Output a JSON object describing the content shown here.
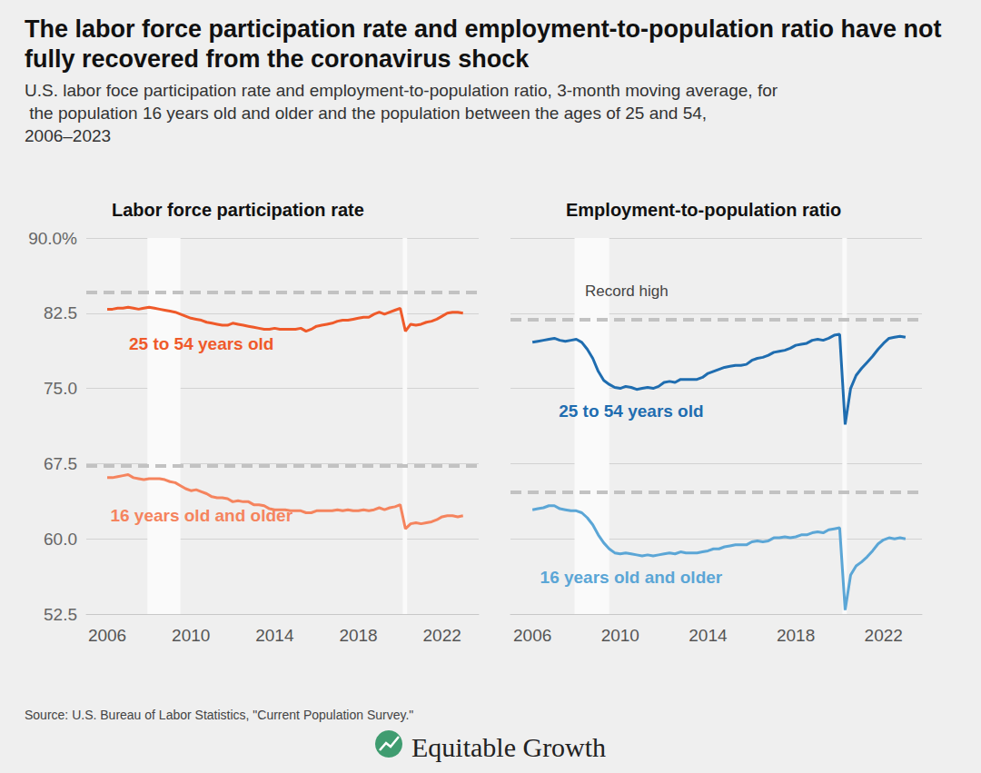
{
  "title": "The labor force participation rate and employment-to-population ratio have not fully recovered from the coronavirus shock",
  "subtitle": "U.S. labor foce participation rate and employment-to-population ratio, 3-month moving average, for the population 16 years old and older and the population between the ages of 25 and 54, 2006–2023",
  "source": "Source: U.S. Bureau of Labor Statistics, \"Current Population Survey.\"",
  "brand": "Equitable Growth",
  "chart_data": [
    {
      "type": "line",
      "title": "Labor force participation rate",
      "x": [
        2006,
        2006.25,
        2006.5,
        2006.75,
        2007,
        2007.25,
        2007.5,
        2007.75,
        2008,
        2008.25,
        2008.5,
        2008.75,
        2009,
        2009.25,
        2009.5,
        2009.75,
        2010,
        2010.25,
        2010.5,
        2010.75,
        2011,
        2011.25,
        2011.5,
        2011.75,
        2012,
        2012.25,
        2012.5,
        2012.75,
        2013,
        2013.25,
        2013.5,
        2013.75,
        2014,
        2014.25,
        2014.5,
        2014.75,
        2015,
        2015.25,
        2015.5,
        2015.75,
        2016,
        2016.25,
        2016.5,
        2016.75,
        2017,
        2017.25,
        2017.5,
        2017.75,
        2018,
        2018.25,
        2018.5,
        2018.75,
        2019,
        2019.25,
        2019.5,
        2019.75,
        2020,
        2020.25,
        2020.5,
        2020.75,
        2021,
        2021.25,
        2021.5,
        2021.75,
        2022,
        2022.25,
        2022.5,
        2022.75,
        2023
      ],
      "xlim": [
        2005,
        2023.75
      ],
      "xticks": [
        2006,
        2010,
        2014,
        2018,
        2022
      ],
      "ylim": [
        52.5,
        90
      ],
      "yticks": [
        52.5,
        {
          "value": 60,
          "label": "60.0"
        },
        67.5,
        {
          "value": 75,
          "label": "75.0"
        },
        82.5,
        {
          "value": 90,
          "label": "90.0%"
        }
      ],
      "grid": true,
      "recessions": [
        [
          2007.92,
          2009.5
        ],
        [
          2020.12,
          2020.33
        ]
      ],
      "reference_lines": [
        {
          "value": 84.6,
          "line_style": "dashed"
        },
        {
          "value": 67.3,
          "line_style": "dashed"
        }
      ],
      "series": [
        {
          "name": "25 to 54 years old",
          "color": "#ef5a2a",
          "values": [
            82.9,
            82.9,
            83.0,
            83.0,
            83.1,
            83.0,
            82.9,
            83.0,
            83.1,
            83.0,
            82.9,
            82.8,
            82.7,
            82.6,
            82.4,
            82.2,
            82.0,
            81.9,
            81.8,
            81.6,
            81.5,
            81.4,
            81.3,
            81.3,
            81.5,
            81.4,
            81.3,
            81.2,
            81.1,
            81.0,
            80.9,
            80.9,
            81.0,
            80.9,
            80.9,
            80.9,
            80.9,
            81.0,
            80.7,
            80.9,
            81.2,
            81.3,
            81.4,
            81.5,
            81.7,
            81.8,
            81.8,
            81.9,
            82.0,
            82.1,
            82.1,
            82.4,
            82.6,
            82.4,
            82.6,
            82.8,
            83.0,
            80.7,
            81.4,
            81.3,
            81.4,
            81.6,
            81.7,
            81.9,
            82.2,
            82.5,
            82.6,
            82.6,
            82.5
          ]
        },
        {
          "name": "16 years old and older",
          "color": "#f5845e",
          "values": [
            66.1,
            66.1,
            66.2,
            66.3,
            66.4,
            66.1,
            66.0,
            65.9,
            66.0,
            66.0,
            66.0,
            65.9,
            65.7,
            65.6,
            65.3,
            65.0,
            64.8,
            64.9,
            64.7,
            64.5,
            64.2,
            64.1,
            64.1,
            64.0,
            63.7,
            63.8,
            63.7,
            63.7,
            63.4,
            63.4,
            63.3,
            63.0,
            62.9,
            62.9,
            62.9,
            62.8,
            62.8,
            62.8,
            62.6,
            62.6,
            62.8,
            62.8,
            62.8,
            62.8,
            62.9,
            62.8,
            62.9,
            62.8,
            62.8,
            62.9,
            62.8,
            62.9,
            63.1,
            62.9,
            63.1,
            63.2,
            63.4,
            61.0,
            61.5,
            61.6,
            61.5,
            61.6,
            61.7,
            61.9,
            62.2,
            62.3,
            62.3,
            62.2,
            62.3
          ]
        }
      ]
    },
    {
      "type": "line",
      "title": "Employment-to-population ratio",
      "x": [
        2006,
        2006.25,
        2006.5,
        2006.75,
        2007,
        2007.25,
        2007.5,
        2007.75,
        2008,
        2008.25,
        2008.5,
        2008.75,
        2009,
        2009.25,
        2009.5,
        2009.75,
        2010,
        2010.25,
        2010.5,
        2010.75,
        2011,
        2011.25,
        2011.5,
        2011.75,
        2012,
        2012.25,
        2012.5,
        2012.75,
        2013,
        2013.25,
        2013.5,
        2013.75,
        2014,
        2014.25,
        2014.5,
        2014.75,
        2015,
        2015.25,
        2015.5,
        2015.75,
        2016,
        2016.25,
        2016.5,
        2016.75,
        2017,
        2017.25,
        2017.5,
        2017.75,
        2018,
        2018.25,
        2018.5,
        2018.75,
        2019,
        2019.25,
        2019.5,
        2019.75,
        2020,
        2020.25,
        2020.5,
        2020.75,
        2021,
        2021.25,
        2021.5,
        2021.75,
        2022,
        2022.25,
        2022.5,
        2022.75,
        2023
      ],
      "xlim": [
        2005,
        2023.75
      ],
      "xticks": [
        2006,
        2010,
        2014,
        2018,
        2022
      ],
      "ylim": [
        52.5,
        90
      ],
      "yticks": [
        52.5,
        60,
        67.5,
        75,
        82.5,
        90
      ],
      "grid": true,
      "tick_labels": "x",
      "recessions": [
        [
          2007.92,
          2009.5
        ],
        [
          2020.12,
          2020.33
        ]
      ],
      "reference_lines": [
        {
          "value": 81.9,
          "line_style": "dashed",
          "label": "Record high"
        },
        {
          "value": 64.7,
          "line_style": "dashed"
        }
      ],
      "series": [
        {
          "name": "25 to 54 years old",
          "color": "#1f6db0",
          "values": [
            79.6,
            79.7,
            79.8,
            79.9,
            80.0,
            79.8,
            79.7,
            79.8,
            79.9,
            79.6,
            78.9,
            78.0,
            76.7,
            75.8,
            75.4,
            75.1,
            75.0,
            75.2,
            75.1,
            74.9,
            75.0,
            75.1,
            75.0,
            75.2,
            75.6,
            75.7,
            75.6,
            75.9,
            75.9,
            75.9,
            75.9,
            76.1,
            76.5,
            76.7,
            76.9,
            77.1,
            77.2,
            77.3,
            77.3,
            77.4,
            77.8,
            78.0,
            78.1,
            78.3,
            78.6,
            78.7,
            78.8,
            79.0,
            79.3,
            79.4,
            79.5,
            79.8,
            79.9,
            79.8,
            80.0,
            80.3,
            80.4,
            71.4,
            75.0,
            76.3,
            77.0,
            77.6,
            78.2,
            78.9,
            79.5,
            80.0,
            80.1,
            80.2,
            80.1
          ]
        },
        {
          "name": "16 years old and older",
          "color": "#5ba6d6",
          "values": [
            62.9,
            63.0,
            63.1,
            63.3,
            63.3,
            63.0,
            62.9,
            62.8,
            62.8,
            62.6,
            62.1,
            61.4,
            60.4,
            59.6,
            59.0,
            58.6,
            58.5,
            58.6,
            58.5,
            58.4,
            58.3,
            58.4,
            58.3,
            58.4,
            58.5,
            58.6,
            58.5,
            58.7,
            58.6,
            58.6,
            58.6,
            58.7,
            58.8,
            59.0,
            59.0,
            59.2,
            59.3,
            59.4,
            59.4,
            59.4,
            59.7,
            59.8,
            59.7,
            59.8,
            60.1,
            60.1,
            60.2,
            60.1,
            60.2,
            60.4,
            60.4,
            60.6,
            60.7,
            60.6,
            60.9,
            61.0,
            61.1,
            52.9,
            56.4,
            57.3,
            57.7,
            58.2,
            58.8,
            59.5,
            59.9,
            60.1,
            60.0,
            60.1,
            60.0
          ]
        }
      ]
    }
  ]
}
